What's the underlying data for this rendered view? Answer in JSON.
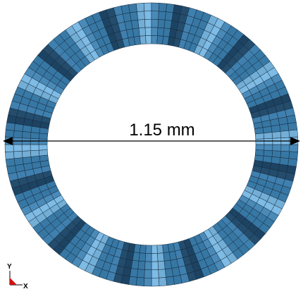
{
  "dimension": {
    "label": "1.15 mm"
  },
  "triad": {
    "y": "Y",
    "x": "X"
  }
}
